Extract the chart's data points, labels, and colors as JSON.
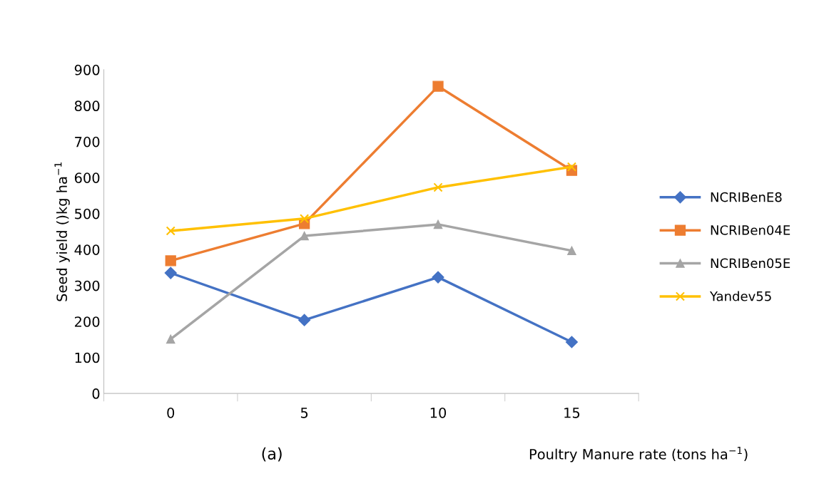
{
  "chart_data": {
    "type": "line",
    "ylabel": "Seed yield ()kg ha$^{−1}$",
    "xlabel": "Poultry Manure rate (tons ha$^{−1}$)",
    "categories": [
      "0",
      "5",
      "10",
      "15"
    ],
    "series": [
      {
        "name": "NCRIBenE8",
        "color": "#4472c4",
        "marker": "diamond",
        "values": [
          335,
          204,
          323,
          143
        ]
      },
      {
        "name": "NCRIBen04E",
        "color": "#ed7d31",
        "marker": "square",
        "values": [
          369,
          472,
          854,
          620
        ]
      },
      {
        "name": "NCRIBen05E",
        "color": "#a5a5a5",
        "marker": "triangle",
        "values": [
          151,
          438,
          470,
          397
        ]
      },
      {
        "name": "Yandev55",
        "color": "#ffc000",
        "marker": "cross",
        "values": [
          452,
          486,
          573,
          630
        ]
      }
    ],
    "ylim": [
      0,
      900
    ],
    "yticks": [
      0,
      100,
      200,
      300,
      400,
      500,
      600,
      700,
      800,
      900
    ],
    "grid": false,
    "legend": "right",
    "line_style": "solid",
    "annotations": [
      "(a)"
    ]
  }
}
